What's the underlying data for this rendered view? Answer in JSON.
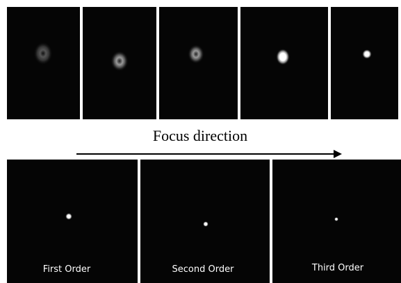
{
  "caption": "Focus direction",
  "panels": [
    {
      "label": "First Order"
    },
    {
      "label": "Second Order"
    },
    {
      "label": "Third Order"
    }
  ]
}
